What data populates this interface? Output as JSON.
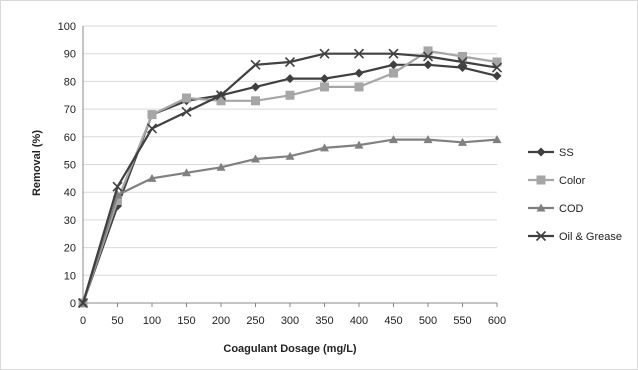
{
  "chart_data": {
    "type": "line",
    "title": "",
    "xlabel": "Coagulant Dosage (mg/L)",
    "ylabel": "Removal (%)",
    "x": [
      0,
      50,
      100,
      150,
      200,
      250,
      300,
      350,
      400,
      450,
      500,
      550,
      600
    ],
    "ylim": [
      0,
      100
    ],
    "yticks": [
      0,
      10,
      20,
      30,
      40,
      50,
      60,
      70,
      80,
      90,
      100
    ],
    "grid": "horizontal",
    "legend_position": "right",
    "series": [
      {
        "name": "SS",
        "marker": "diamond",
        "color": "#404040",
        "values": [
          0,
          35,
          68,
          73,
          75,
          78,
          81,
          81,
          83,
          86,
          86,
          85,
          82
        ]
      },
      {
        "name": "Color",
        "marker": "square",
        "color": "#a6a6a6",
        "values": [
          0,
          37,
          68,
          74,
          73,
          73,
          75,
          78,
          78,
          83,
          91,
          89,
          87
        ]
      },
      {
        "name": "COD",
        "marker": "triangle",
        "color": "#808080",
        "values": [
          0,
          39,
          45,
          47,
          49,
          52,
          53,
          56,
          57,
          59,
          59,
          58,
          59
        ]
      },
      {
        "name": "Oil & Grease",
        "marker": "x",
        "color": "#404040",
        "values": [
          0,
          42,
          63,
          69,
          75,
          86,
          87,
          90,
          90,
          90,
          89,
          87,
          85
        ]
      }
    ]
  }
}
